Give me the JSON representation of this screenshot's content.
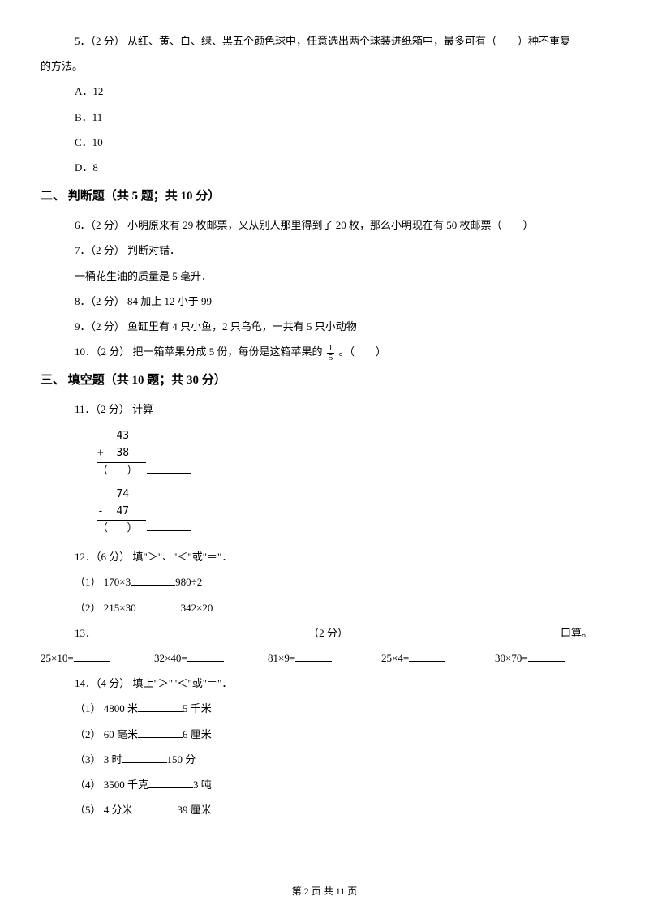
{
  "q5": {
    "prefix": "5．（2 分） 从红、黄、白、绿、黑五个颜色球中，任意选出两个球装进纸箱中，最多可有（　　）种不重复",
    "suffix": "的方法。",
    "options": {
      "a": "A．12",
      "b": "B．11",
      "c": "C．10",
      "d": "D．8"
    }
  },
  "section2": "二、 判断题（共 5 题；共 10 分）",
  "q6": "6．（2 分） 小明原来有 29 枚邮票，又从别人那里得到了 20 枚，那么小明现在有 50 枚邮票（　　）",
  "q7": {
    "line1": "7．（2 分） 判断对错．",
    "line2": "一桶花生油的质量是 5 毫升．"
  },
  "q8": "8．（2 分） 84 加上 12 小于 99",
  "q9": "9．（2 分） 鱼缸里有 4 只小鱼，2 只乌龟，一共有 5 只小动物",
  "q10": {
    "before": "10．（2 分） 把一箱苹果分成 5 份，每份是这箱苹果的 ",
    "frac_num": "1",
    "frac_den": "5",
    "after": " 。（　　）"
  },
  "section3": "三、 填空题（共 10 题；共 30 分）",
  "q11": {
    "title": "11．（2 分） 计算",
    "calc1": {
      "r1": "   43",
      "r2": "+  38",
      "r3": "（   ）"
    },
    "calc2": {
      "r1": "   74",
      "r2": "-  47",
      "r3": "（   ）"
    }
  },
  "q12": {
    "title": "12．（6 分） 填\"＞\"、\"＜\"或\"＝\"．",
    "sub1_a": "（1） 170×3",
    "sub1_b": "980÷2",
    "sub2_a": "（2） 215×30",
    "sub2_b": "342×20"
  },
  "q13": {
    "num": "13．",
    "pts": "（2 分）",
    "title": "口算。",
    "items": {
      "a": "25×10=",
      "b": "32×40=",
      "c": "81×9=",
      "d": "25×4=",
      "e": "30×70="
    }
  },
  "q14": {
    "title": "14．（4 分） 填上\"＞\"\"＜\"或\"＝\"．",
    "s1a": "（1） 4800 米",
    "s1b": "5 千米",
    "s2a": "（2） 60 毫米",
    "s2b": "6 厘米",
    "s3a": "（3） 3 时",
    "s3b": "150 分",
    "s4a": "（4） 3500 千克",
    "s4b": "3 吨",
    "s5a": "（5） 4 分米",
    "s5b": "39 厘米"
  },
  "footer": "第 2 页 共 11 页"
}
